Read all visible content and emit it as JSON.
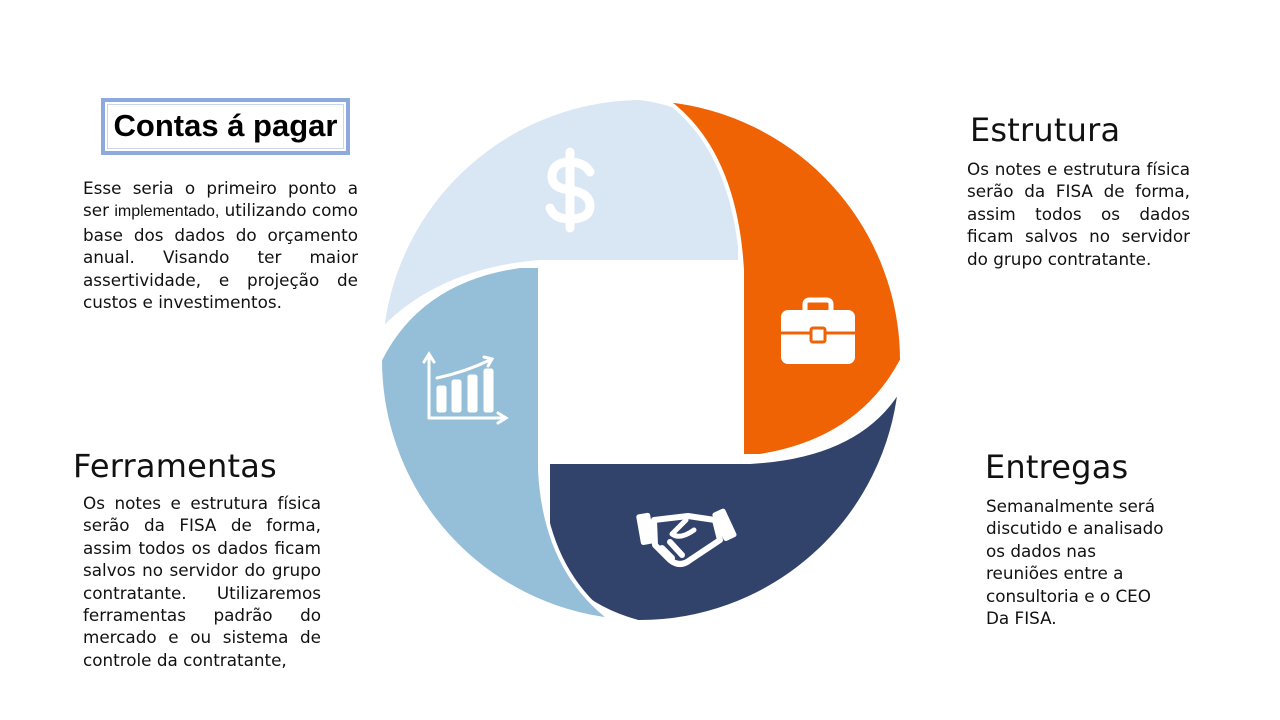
{
  "contas": {
    "title": "Contas á pagar",
    "text_before": "Esse seria o primeiro ponto a ser ",
    "text_highlight": "implementado,",
    "text_after": " utilizando como base dos dados do orçamento anual. Visando ter maior assertividade, e projeção de custos e investimentos."
  },
  "estrutura": {
    "title": "Estrutura",
    "text": "Os notes e estrutura física serão da FISA de forma, assim todos os dados ficam salvos no servidor do grupo contratante."
  },
  "ferramentas": {
    "title": "Ferramentas",
    "text": "Os notes e estrutura física serão da FISA de forma, assim todos os dados ficam salvos no servidor do grupo contratante. Utilizaremos ferramentas padrão do mercado e ou sistema de controle da contratante,"
  },
  "entregas": {
    "title": "Entregas",
    "text": "Semanalmente será discutido e analisado os dados nas reuniões entre a consultoria e o CEO Da FISA."
  },
  "segments": [
    {
      "name": "contas",
      "color": "#d9e6f4",
      "icon": "dollar-icon"
    },
    {
      "name": "estrutura",
      "color": "#f06305",
      "icon": "briefcase-icon"
    },
    {
      "name": "entregas",
      "color": "#32436b",
      "icon": "handshake-icon"
    },
    {
      "name": "ferramentas",
      "color": "#95bfd8",
      "icon": "growth-chart-icon"
    }
  ]
}
